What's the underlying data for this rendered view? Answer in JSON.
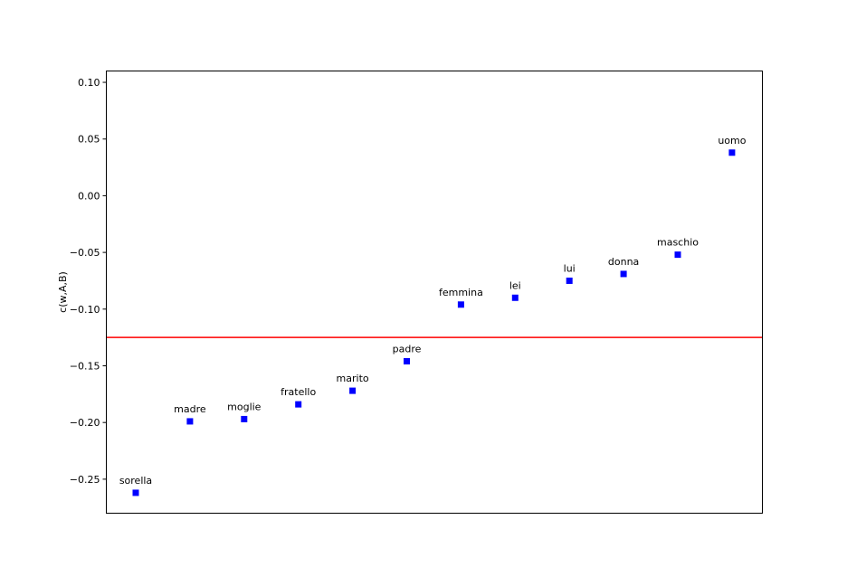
{
  "chart_data": {
    "type": "scatter",
    "title": "",
    "xlabel": "",
    "ylabel": "c(w,A,B)",
    "ylim": [
      -0.28,
      0.11
    ],
    "yticks": [
      0.1,
      0.05,
      0.0,
      -0.05,
      -0.1,
      -0.15,
      -0.2,
      -0.25
    ],
    "ytick_labels": [
      "0.10",
      "0.05",
      "0.00",
      "−0.05",
      "−0.10",
      "−0.15",
      "−0.20",
      "−0.25"
    ],
    "x_ticks_visible": false,
    "grid": false,
    "marker": "square",
    "point_color": "#0000ff",
    "points": [
      {
        "label": "sorella",
        "y": -0.262
      },
      {
        "label": "madre",
        "y": -0.199
      },
      {
        "label": "moglie",
        "y": -0.197
      },
      {
        "label": "fratello",
        "y": -0.184
      },
      {
        "label": "marito",
        "y": -0.172
      },
      {
        "label": "padre",
        "y": -0.146
      },
      {
        "label": "femmina",
        "y": -0.096
      },
      {
        "label": "lei",
        "y": -0.09
      },
      {
        "label": "lui",
        "y": -0.075
      },
      {
        "label": "donna",
        "y": -0.069
      },
      {
        "label": "maschio",
        "y": -0.052
      },
      {
        "label": "uomo",
        "y": 0.038
      }
    ],
    "reference_line": {
      "y": -0.125,
      "color": "#ff0000"
    }
  }
}
